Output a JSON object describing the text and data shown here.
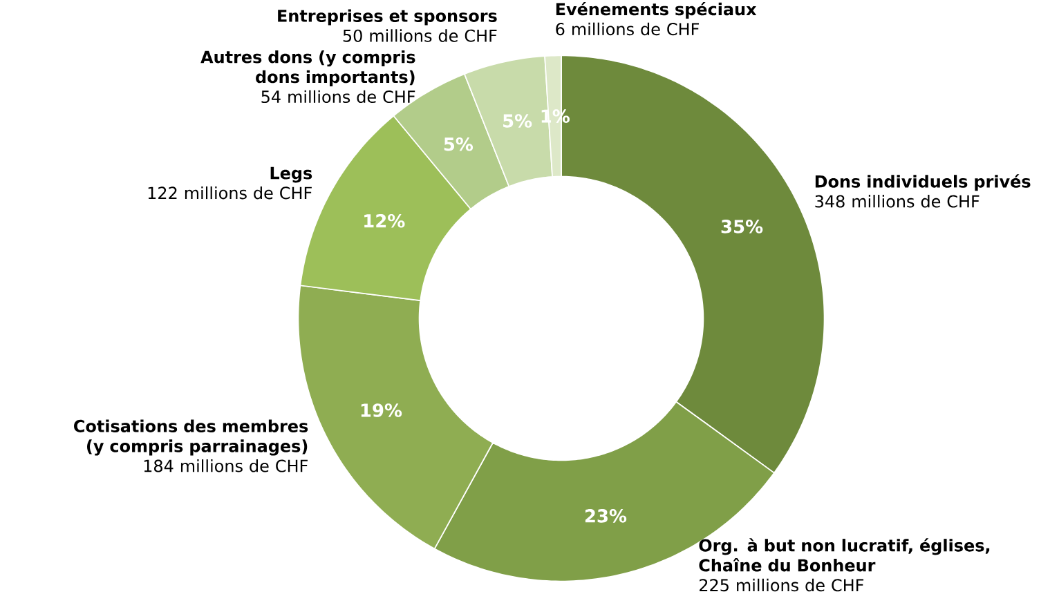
{
  "chart_data": {
    "type": "donut",
    "categories": [
      "Dons individuels privés",
      "Org. à but non lucratif, églises, Chaîne du Bonheur",
      "Cotisations des membres (y compris parrainages)",
      "Legs",
      "Autres dons (y compris dons importants)",
      "Entreprises et sponsors",
      "Evénements spéciaux"
    ],
    "values": [
      35,
      23,
      19,
      12,
      5,
      5,
      1
    ],
    "colors": [
      "#6e8a3c",
      "#809f48",
      "#8fad52",
      "#9dbf59",
      "#b2cc8a",
      "#c8dbaa",
      "#dde8c8"
    ],
    "value_labels": [
      "35%",
      "23%",
      "19%",
      "12%",
      "5%",
      "5%",
      "1%"
    ],
    "annotations": [
      "348 millions de CHF",
      "225 millions de CHF",
      "184 millions de CHF",
      "122 millions de CHF",
      "54 millions de CHF",
      "50 millions de CHF",
      "6 millions de CHF"
    ]
  }
}
